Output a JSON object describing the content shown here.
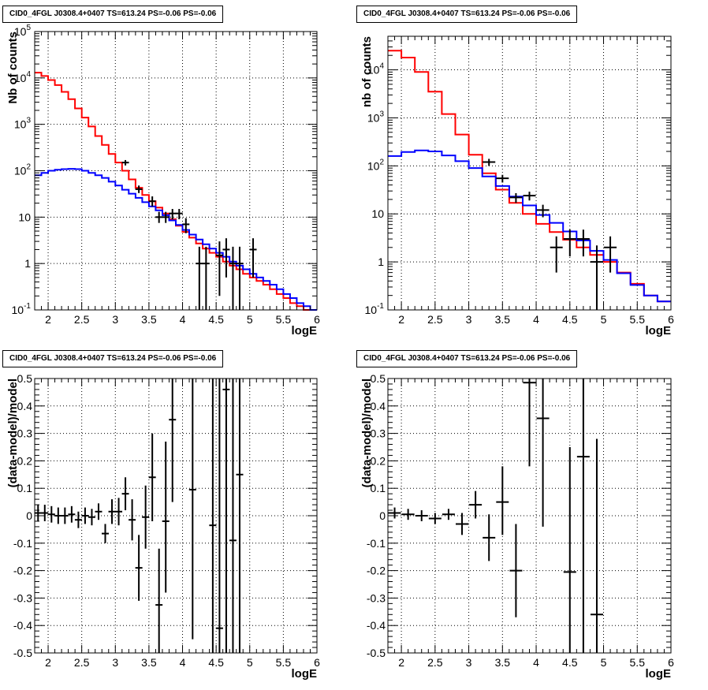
{
  "chart_data": [
    {
      "type": "line",
      "title": "CID0_4FGL J0308.4+0407 TS=613.24 PS=-0.06 PS=-0.06",
      "xlabel": "logE",
      "ylabel": "Nb of counts",
      "y_log": true,
      "grid": true,
      "xlim": [
        1.8,
        6
      ],
      "ylim": [
        0.1,
        100000
      ],
      "x_ticks": [
        "2",
        "2.5",
        "3",
        "3.5",
        "4",
        "4.5",
        "5",
        "5.5",
        "6"
      ],
      "y_ticks": [
        "10^-1",
        "1",
        "10",
        "10^2",
        "10^3",
        "10^4",
        "10^5"
      ],
      "series": [
        {
          "color": "#ff0000",
          "bin_edges": [
            1.8,
            1.9,
            2.0,
            2.1,
            2.2,
            2.3,
            2.4,
            2.5,
            2.6,
            2.7,
            2.8,
            2.9,
            3.0,
            3.1,
            3.2,
            3.3,
            3.4,
            3.5,
            3.6,
            3.7,
            3.8,
            3.9,
            4.0,
            4.1,
            4.2,
            4.3,
            4.4,
            4.5,
            4.6,
            4.7,
            4.8,
            4.9,
            5.0,
            5.1,
            5.2,
            5.3,
            5.4,
            5.5,
            5.6,
            5.7,
            5.8,
            5.9,
            6.0
          ],
          "values": [
            13000,
            11000,
            9000,
            7000,
            5000,
            3500,
            2200,
            1400,
            900,
            560,
            360,
            230,
            150,
            100,
            65,
            43,
            30,
            22,
            16,
            12,
            9,
            6.5,
            4.8,
            3.6,
            2.7,
            2.1,
            1.7,
            1.4,
            1.1,
            0.9,
            0.75,
            0.6,
            0.5,
            0.42,
            0.35,
            0.28,
            0.22,
            0.18,
            0.14,
            0.12,
            0.1,
            0.09
          ]
        },
        {
          "color": "#0000ff",
          "bin_edges": [
            1.8,
            1.9,
            2.0,
            2.1,
            2.2,
            2.3,
            2.4,
            2.5,
            2.6,
            2.7,
            2.8,
            2.9,
            3.0,
            3.1,
            3.2,
            3.3,
            3.4,
            3.5,
            3.6,
            3.7,
            3.8,
            3.9,
            4.0,
            4.1,
            4.2,
            4.3,
            4.4,
            4.5,
            4.6,
            4.7,
            4.8,
            4.9,
            5.0,
            5.1,
            5.2,
            5.3,
            5.4,
            5.5,
            5.6,
            5.7,
            5.8,
            5.9,
            6.0
          ],
          "values": [
            80,
            90,
            100,
            105,
            108,
            110,
            108,
            100,
            90,
            80,
            70,
            58,
            48,
            39,
            32,
            26,
            21,
            17,
            14,
            11,
            8.5,
            6.8,
            5.3,
            4.2,
            3.3,
            2.6,
            2.1,
            1.7,
            1.4,
            1.1,
            0.9,
            0.75,
            0.6,
            0.5,
            0.42,
            0.35,
            0.28,
            0.22,
            0.18,
            0.14,
            0.12,
            0.1
          ]
        }
      ],
      "points": [
        {
          "x": 3.15,
          "y": 150,
          "ylo": 130,
          "yhi": 170
        },
        {
          "x": 3.35,
          "y": 40,
          "ylo": 33,
          "yhi": 48
        },
        {
          "x": 3.55,
          "y": 22,
          "ylo": 17,
          "yhi": 28
        },
        {
          "x": 3.65,
          "y": 10,
          "ylo": 7.5,
          "yhi": 13
        },
        {
          "x": 3.75,
          "y": 10,
          "ylo": 7.5,
          "yhi": 13
        },
        {
          "x": 3.85,
          "y": 12,
          "ylo": 9,
          "yhi": 15
        },
        {
          "x": 3.95,
          "y": 12,
          "ylo": 9,
          "yhi": 15
        },
        {
          "x": 4.05,
          "y": 7,
          "ylo": 4.5,
          "yhi": 9.5
        },
        {
          "x": 4.25,
          "y": 1,
          "ylo": 0.1,
          "yhi": 2.3
        },
        {
          "x": 4.35,
          "y": 1,
          "ylo": 0.1,
          "yhi": 2.3
        },
        {
          "x": 4.55,
          "y": 1.5,
          "ylo": 0.2,
          "yhi": 3
        },
        {
          "x": 4.65,
          "y": 2,
          "ylo": 0.5,
          "yhi": 3.5
        },
        {
          "x": 4.75,
          "y": 1,
          "ylo": 0.1,
          "yhi": 2.3
        },
        {
          "x": 4.85,
          "y": 1,
          "ylo": 0.1,
          "yhi": 2.3
        },
        {
          "x": 5.05,
          "y": 2,
          "ylo": 0.5,
          "yhi": 3.5
        }
      ]
    },
    {
      "type": "line",
      "title": "CID0_4FGL J0308.4+0407 TS=613.24 PS=-0.06 PS=-0.06",
      "xlabel": "logE",
      "ylabel": "nb of counts",
      "y_log": true,
      "grid": true,
      "xlim": [
        1.8,
        6
      ],
      "ylim": [
        0.1,
        50000
      ],
      "x_ticks": [
        "2",
        "2.5",
        "3",
        "3.5",
        "4",
        "4.5",
        "5",
        "5.5",
        "6"
      ],
      "y_ticks": [
        "10^-1",
        "1",
        "10",
        "10^2",
        "10^3",
        "10^4"
      ],
      "series": [
        {
          "color": "#ff0000",
          "bin_edges": [
            1.8,
            2.0,
            2.2,
            2.4,
            2.6,
            2.8,
            3.0,
            3.2,
            3.4,
            3.6,
            3.8,
            4.0,
            4.2,
            4.4,
            4.6,
            4.8,
            5.0,
            5.2,
            5.4,
            5.6,
            5.8,
            6.0
          ],
          "values": [
            25000,
            18000,
            9000,
            3500,
            1200,
            450,
            170,
            70,
            32,
            17,
            10,
            6.2,
            4.2,
            2.9,
            2.0,
            1.4,
            1.0,
            0.6,
            0.35,
            0.2,
            0.15
          ]
        },
        {
          "color": "#0000ff",
          "bin_edges": [
            1.8,
            2.0,
            2.2,
            2.4,
            2.6,
            2.8,
            3.0,
            3.2,
            3.4,
            3.6,
            3.8,
            4.0,
            4.2,
            4.4,
            4.6,
            4.8,
            5.0,
            5.2,
            5.4,
            5.6,
            5.8,
            6.0
          ],
          "values": [
            160,
            195,
            210,
            200,
            165,
            125,
            90,
            60,
            38,
            23,
            15,
            9.5,
            6.5,
            4.3,
            2.8,
            1.7,
            1.1,
            0.58,
            0.33,
            0.2,
            0.15
          ]
        }
      ],
      "points": [
        {
          "x": 3.3,
          "y": 120,
          "ylo": 100,
          "yhi": 140
        },
        {
          "x": 3.5,
          "y": 55,
          "ylo": 45,
          "yhi": 65
        },
        {
          "x": 3.7,
          "y": 22,
          "ylo": 17,
          "yhi": 27
        },
        {
          "x": 3.9,
          "y": 24,
          "ylo": 19,
          "yhi": 29
        },
        {
          "x": 4.1,
          "y": 12,
          "ylo": 8.5,
          "yhi": 15.5
        },
        {
          "x": 4.3,
          "y": 2,
          "ylo": 0.6,
          "yhi": 3.4
        },
        {
          "x": 4.5,
          "y": 3,
          "ylo": 1.3,
          "yhi": 4.7
        },
        {
          "x": 4.7,
          "y": 3,
          "ylo": 1.3,
          "yhi": 4.7
        },
        {
          "x": 4.9,
          "y": 1,
          "ylo": 0.1,
          "yhi": 2.2
        },
        {
          "x": 5.1,
          "y": 2,
          "ylo": 0.6,
          "yhi": 3.4
        }
      ]
    },
    {
      "type": "scatter",
      "title": "CID0_4FGL J0308.4+0407 TS=613.24 PS=-0.06 PS=-0.06",
      "xlabel": "logE",
      "ylabel": "(data-model)/model",
      "grid": true,
      "xlim": [
        1.8,
        6
      ],
      "ylim": [
        -0.5,
        0.5
      ],
      "x_ticks": [
        "2",
        "2.5",
        "3",
        "3.5",
        "4",
        "4.5",
        "5",
        "5.5",
        "6"
      ],
      "y_ticks": [
        "-0.5",
        "-0.4",
        "-0.3",
        "-0.2",
        "-0.1",
        "0",
        "0.1",
        "0.2",
        "0.3",
        "0.4",
        "0.5"
      ],
      "points": [
        {
          "x": 1.85,
          "y": 0.01,
          "ylo": -0.02,
          "yhi": 0.04
        },
        {
          "x": 1.95,
          "y": 0.01,
          "ylo": -0.02,
          "yhi": 0.04
        },
        {
          "x": 2.05,
          "y": 0.005,
          "ylo": -0.025,
          "yhi": 0.035
        },
        {
          "x": 2.15,
          "y": 0.0,
          "ylo": -0.03,
          "yhi": 0.03
        },
        {
          "x": 2.25,
          "y": 0.0,
          "ylo": -0.03,
          "yhi": 0.03
        },
        {
          "x": 2.35,
          "y": 0.005,
          "ylo": -0.025,
          "yhi": 0.035
        },
        {
          "x": 2.45,
          "y": -0.015,
          "ylo": -0.045,
          "yhi": 0.015
        },
        {
          "x": 2.55,
          "y": 0.0,
          "ylo": -0.03,
          "yhi": 0.03
        },
        {
          "x": 2.65,
          "y": -0.005,
          "ylo": -0.035,
          "yhi": 0.025
        },
        {
          "x": 2.75,
          "y": 0.015,
          "ylo": -0.015,
          "yhi": 0.045
        },
        {
          "x": 2.85,
          "y": -0.065,
          "ylo": -0.1,
          "yhi": -0.03
        },
        {
          "x": 2.95,
          "y": 0.015,
          "ylo": -0.03,
          "yhi": 0.06
        },
        {
          "x": 3.05,
          "y": 0.015,
          "ylo": -0.035,
          "yhi": 0.065
        },
        {
          "x": 3.15,
          "y": 0.08,
          "ylo": 0.02,
          "yhi": 0.14
        },
        {
          "x": 3.25,
          "y": -0.015,
          "ylo": -0.09,
          "yhi": 0.06
        },
        {
          "x": 3.35,
          "y": -0.19,
          "ylo": -0.31,
          "yhi": -0.07
        },
        {
          "x": 3.45,
          "y": -0.005,
          "ylo": -0.12,
          "yhi": 0.11
        },
        {
          "x": 3.55,
          "y": 0.14,
          "ylo": -0.02,
          "yhi": 0.3
        },
        {
          "x": 3.65,
          "y": -0.325,
          "ylo": -0.5,
          "yhi": -0.12
        },
        {
          "x": 3.75,
          "y": -0.02,
          "ylo": -0.28,
          "yhi": 0.27
        },
        {
          "x": 3.85,
          "y": 0.35,
          "ylo": 0.05,
          "yhi": 0.5
        },
        {
          "x": 4.15,
          "y": 0.095,
          "ylo": -0.45,
          "yhi": 0.5
        },
        {
          "x": 4.45,
          "y": -0.035,
          "ylo": -0.5,
          "yhi": 0.5
        },
        {
          "x": 4.55,
          "y": -0.41,
          "ylo": -0.5,
          "yhi": 0.5
        },
        {
          "x": 4.65,
          "y": 0.46,
          "ylo": -0.5,
          "yhi": 0.5
        },
        {
          "x": 4.75,
          "y": -0.09,
          "ylo": -0.5,
          "yhi": 0.5
        },
        {
          "x": 4.85,
          "y": 0.15,
          "ylo": -0.5,
          "yhi": 0.5
        }
      ]
    },
    {
      "type": "scatter",
      "title": "CID0_4FGL J0308.4+0407 TS=613.24 PS=-0.06 PS=-0.06",
      "xlabel": "logE",
      "ylabel": "(data-model)/model",
      "grid": true,
      "xlim": [
        1.8,
        6
      ],
      "ylim": [
        -0.5,
        0.5
      ],
      "x_ticks": [
        "2",
        "2.5",
        "3",
        "3.5",
        "4",
        "4.5",
        "5",
        "5.5",
        "6"
      ],
      "y_ticks": [
        "-0.5",
        "-0.4",
        "-0.3",
        "-0.2",
        "-0.1",
        "0",
        "0.1",
        "0.2",
        "0.3",
        "0.4",
        "0.5"
      ],
      "points": [
        {
          "x": 1.9,
          "y": 0.01,
          "ylo": -0.01,
          "yhi": 0.03
        },
        {
          "x": 2.1,
          "y": 0.005,
          "ylo": -0.015,
          "yhi": 0.025
        },
        {
          "x": 2.3,
          "y": 0.0,
          "ylo": -0.02,
          "yhi": 0.02
        },
        {
          "x": 2.5,
          "y": -0.01,
          "ylo": -0.03,
          "yhi": 0.01
        },
        {
          "x": 2.7,
          "y": 0.005,
          "ylo": -0.015,
          "yhi": 0.025
        },
        {
          "x": 2.9,
          "y": -0.03,
          "ylo": -0.07,
          "yhi": 0.01
        },
        {
          "x": 3.1,
          "y": 0.04,
          "ylo": -0.01,
          "yhi": 0.09
        },
        {
          "x": 3.3,
          "y": -0.08,
          "ylo": -0.165,
          "yhi": 0.005
        },
        {
          "x": 3.5,
          "y": 0.05,
          "ylo": -0.07,
          "yhi": 0.18
        },
        {
          "x": 3.7,
          "y": -0.2,
          "ylo": -0.37,
          "yhi": -0.03
        },
        {
          "x": 3.9,
          "y": 0.485,
          "ylo": 0.18,
          "yhi": 0.5
        },
        {
          "x": 4.1,
          "y": 0.355,
          "ylo": -0.04,
          "yhi": 0.5
        },
        {
          "x": 4.5,
          "y": -0.205,
          "ylo": -0.5,
          "yhi": 0.25
        },
        {
          "x": 4.7,
          "y": 0.215,
          "ylo": -0.5,
          "yhi": 0.5
        },
        {
          "x": 4.9,
          "y": -0.36,
          "ylo": -0.5,
          "yhi": 0.28
        }
      ]
    }
  ]
}
